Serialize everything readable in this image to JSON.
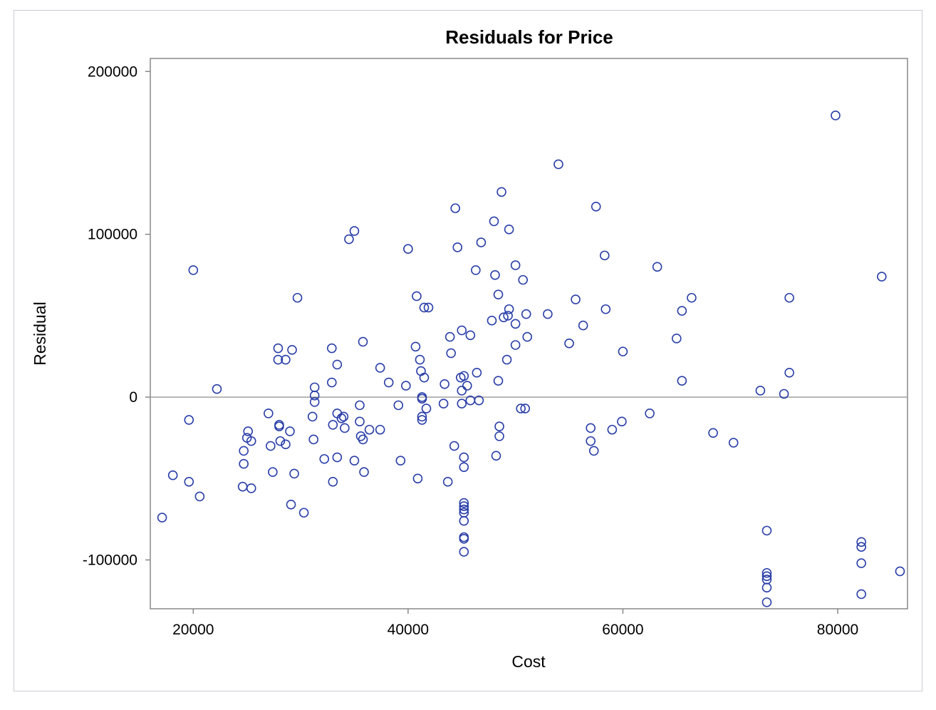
{
  "chart_data": {
    "type": "scatter",
    "title": "Residuals for Price",
    "xlabel": "Cost",
    "ylabel": "Residual",
    "xlim": [
      16000,
      86500
    ],
    "ylim": [
      -130000,
      208000
    ],
    "xticks": [
      20000,
      40000,
      60000,
      80000
    ],
    "yticks": [
      200000,
      100000,
      0,
      -100000
    ],
    "reference_line_y": 0,
    "grid": false,
    "marker": "open-circle",
    "colors": {
      "marker": "#2a3fa8",
      "axis": "#888888",
      "reference": "#a0a0a0"
    },
    "points": [
      [
        17100,
        -74000
      ],
      [
        18100,
        -48000
      ],
      [
        19600,
        -14000
      ],
      [
        19600,
        -52000
      ],
      [
        20000,
        78000
      ],
      [
        20600,
        -61000
      ],
      [
        22200,
        5000
      ],
      [
        24600,
        -55000
      ],
      [
        24700,
        -41000
      ],
      [
        24700,
        -33000
      ],
      [
        25000,
        -25000
      ],
      [
        25100,
        -21000
      ],
      [
        25400,
        -27000
      ],
      [
        25400,
        -56000
      ],
      [
        27000,
        -10000
      ],
      [
        27200,
        -30000
      ],
      [
        27400,
        -46000
      ],
      [
        27900,
        30000
      ],
      [
        27900,
        23000
      ],
      [
        28000,
        -17000
      ],
      [
        28000,
        -18000
      ],
      [
        28100,
        -27000
      ],
      [
        28600,
        23000
      ],
      [
        28600,
        -29000
      ],
      [
        29000,
        -21000
      ],
      [
        29100,
        -66000
      ],
      [
        29200,
        29000
      ],
      [
        29400,
        -47000
      ],
      [
        29700,
        61000
      ],
      [
        30300,
        -71000
      ],
      [
        31100,
        -12000
      ],
      [
        31200,
        -26000
      ],
      [
        31300,
        6000
      ],
      [
        31300,
        1000
      ],
      [
        31300,
        -3000
      ],
      [
        32200,
        -38000
      ],
      [
        32900,
        30000
      ],
      [
        32900,
        9000
      ],
      [
        33000,
        -17000
      ],
      [
        33000,
        -52000
      ],
      [
        33400,
        20000
      ],
      [
        33400,
        -10000
      ],
      [
        33400,
        -37000
      ],
      [
        33800,
        -13000
      ],
      [
        34000,
        -12000
      ],
      [
        34100,
        -19000
      ],
      [
        34500,
        97000
      ],
      [
        35000,
        102000
      ],
      [
        35000,
        -39000
      ],
      [
        35500,
        -5000
      ],
      [
        35500,
        -15000
      ],
      [
        35600,
        -24000
      ],
      [
        35800,
        -26000
      ],
      [
        35800,
        34000
      ],
      [
        35900,
        -46000
      ],
      [
        36400,
        -20000
      ],
      [
        37400,
        18000
      ],
      [
        37400,
        -20000
      ],
      [
        38200,
        9000
      ],
      [
        39100,
        -5000
      ],
      [
        39300,
        -39000
      ],
      [
        39800,
        7000
      ],
      [
        40000,
        91000
      ],
      [
        40700,
        31000
      ],
      [
        40800,
        62000
      ],
      [
        40900,
        -50000
      ],
      [
        41100,
        23000
      ],
      [
        41200,
        16000
      ],
      [
        41300,
        0
      ],
      [
        41300,
        -1000
      ],
      [
        41300,
        -12000
      ],
      [
        41300,
        -14000
      ],
      [
        41500,
        12000
      ],
      [
        41500,
        55000
      ],
      [
        41700,
        -7000
      ],
      [
        41900,
        55000
      ],
      [
        43300,
        -4000
      ],
      [
        43400,
        8000
      ],
      [
        43700,
        -52000
      ],
      [
        43900,
        37000
      ],
      [
        44000,
        27000
      ],
      [
        44300,
        -30000
      ],
      [
        44400,
        116000
      ],
      [
        44600,
        92000
      ],
      [
        44900,
        12000
      ],
      [
        45000,
        41000
      ],
      [
        45000,
        -4000
      ],
      [
        45000,
        4000
      ],
      [
        45200,
        13000
      ],
      [
        45200,
        -37000
      ],
      [
        45200,
        -43000
      ],
      [
        45200,
        -65000
      ],
      [
        45200,
        -67000
      ],
      [
        45200,
        -69000
      ],
      [
        45200,
        -71000
      ],
      [
        45200,
        -76000
      ],
      [
        45200,
        -86000
      ],
      [
        45200,
        -87000
      ],
      [
        45200,
        -95000
      ],
      [
        45500,
        7000
      ],
      [
        45800,
        -2000
      ],
      [
        45800,
        38000
      ],
      [
        46300,
        78000
      ],
      [
        46400,
        15000
      ],
      [
        46600,
        -2000
      ],
      [
        46800,
        95000
      ],
      [
        47800,
        47000
      ],
      [
        48000,
        108000
      ],
      [
        48100,
        75000
      ],
      [
        48200,
        -36000
      ],
      [
        48400,
        63000
      ],
      [
        48400,
        10000
      ],
      [
        48500,
        -18000
      ],
      [
        48500,
        -24000
      ],
      [
        48700,
        126000
      ],
      [
        48900,
        49000
      ],
      [
        49200,
        23000
      ],
      [
        49300,
        50000
      ],
      [
        49400,
        103000
      ],
      [
        49400,
        54000
      ],
      [
        50000,
        81000
      ],
      [
        50000,
        45000
      ],
      [
        50000,
        32000
      ],
      [
        50500,
        -7000
      ],
      [
        50700,
        72000
      ],
      [
        50900,
        -7000
      ],
      [
        51000,
        51000
      ],
      [
        51100,
        37000
      ],
      [
        53000,
        51000
      ],
      [
        54000,
        143000
      ],
      [
        55000,
        33000
      ],
      [
        55600,
        60000
      ],
      [
        56300,
        44000
      ],
      [
        57000,
        -19000
      ],
      [
        57000,
        -27000
      ],
      [
        57300,
        -33000
      ],
      [
        57500,
        117000
      ],
      [
        58300,
        87000
      ],
      [
        58400,
        54000
      ],
      [
        59000,
        -20000
      ],
      [
        59900,
        -15000
      ],
      [
        60000,
        28000
      ],
      [
        62500,
        -10000
      ],
      [
        63200,
        80000
      ],
      [
        65000,
        36000
      ],
      [
        65500,
        53000
      ],
      [
        65500,
        10000
      ],
      [
        66400,
        61000
      ],
      [
        68400,
        -22000
      ],
      [
        70300,
        -28000
      ],
      [
        72800,
        4000
      ],
      [
        73400,
        -82000
      ],
      [
        73400,
        -108000
      ],
      [
        73400,
        -110000
      ],
      [
        73400,
        -112000
      ],
      [
        73400,
        -117000
      ],
      [
        73400,
        -126000
      ],
      [
        75000,
        2000
      ],
      [
        75500,
        61000
      ],
      [
        75500,
        15000
      ],
      [
        79800,
        173000
      ],
      [
        82200,
        -89000
      ],
      [
        82200,
        -92000
      ],
      [
        82200,
        -102000
      ],
      [
        82200,
        -121000
      ],
      [
        84100,
        74000
      ],
      [
        85800,
        -107000
      ]
    ]
  }
}
